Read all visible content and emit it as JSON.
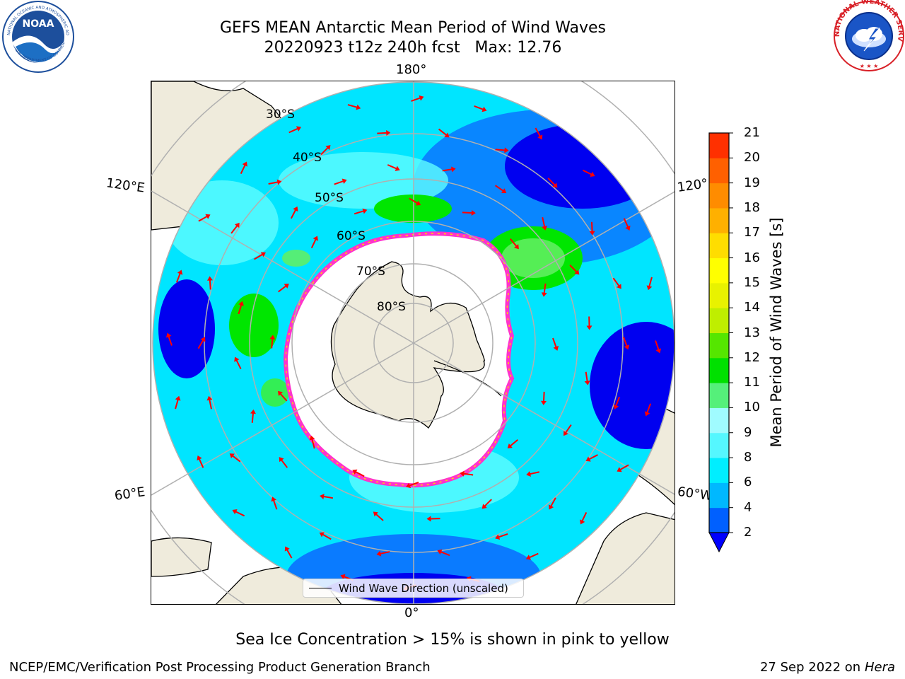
{
  "title": {
    "line1": "GEFS MEAN Antarctic Mean Period of Wind Waves",
    "line2": "20220923 t12z 240h fcst   Max: 12.76"
  },
  "logos": {
    "left": "noaa-logo",
    "left_text": "NOAA",
    "left_ring_text": "NATIONAL OCEANIC AND ATMOSPHERIC ADMINISTRATION",
    "left_ring_text_bottom": "U.S. DEPARTMENT OF COMMERCE",
    "right": "nws-logo",
    "right_ring_text": "NATIONAL WEATHER SERVICE"
  },
  "map": {
    "projection": "south-polar-stereographic",
    "longitude_labels": {
      "top": "180°",
      "bottom": "0°",
      "upper_left": "120°E",
      "upper_right": "120°",
      "lower_left": "60°E",
      "lower_right": "60°W"
    },
    "latitude_labels": [
      "30°S",
      "40°S",
      "50°S",
      "60°S",
      "70°S",
      "80°S"
    ],
    "colors": {
      "land": "#efebdc",
      "ocean_low": "#0000ff",
      "ocean_mid": "#00e5ff",
      "ocean_light": "#5ffcff",
      "wave_green": "#00e600",
      "sea_ice_edge": "#ff33cc",
      "sea_ice_yellow": "#ffd700",
      "arrow": "#ff0000",
      "grid": "#b0b0b0"
    }
  },
  "legend": {
    "label": "Wind Wave Direction (unscaled)"
  },
  "colorbar": {
    "label": "Mean Period of Wind Waves [s]",
    "ticks": [
      "2",
      "4",
      "6",
      "8",
      "9",
      "10",
      "11",
      "12",
      "13",
      "14",
      "15",
      "16",
      "17",
      "18",
      "19",
      "20",
      "21"
    ],
    "colors": [
      "#0060ff",
      "#00b8ff",
      "#00eeff",
      "#55f7ff",
      "#a0fbff",
      "#55f07a",
      "#00e000",
      "#55e600",
      "#bfee00",
      "#e8f200",
      "#ffff00",
      "#ffdd00",
      "#ffb000",
      "#ff8c00",
      "#ff6000",
      "#ff3000",
      "#ff0000"
    ],
    "under_color": "#0000ff"
  },
  "notes": {
    "ice": "Sea Ice Concentration > 15% is shown in pink to yellow",
    "footer_left": "NCEP/EMC/Verification Post Processing Product Generation Branch",
    "footer_date": "27 Sep 2022 on",
    "footer_host": "Hera"
  }
}
